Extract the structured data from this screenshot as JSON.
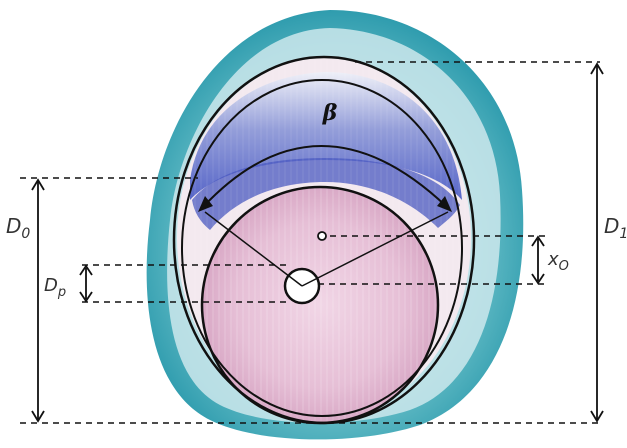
{
  "labels": {
    "beta": "β",
    "d0_main": "D",
    "d0_sub": "0",
    "d1_main": "D",
    "d1_sub": "1",
    "dp_main": "D",
    "dp_sub": "p",
    "xo_main": "x",
    "xo_sub": "O"
  },
  "colors": {
    "bark_blue": "#3fa9b8",
    "wood_pink": "#e8c3d9",
    "stained_blue": "#5564c8",
    "line": "#111111",
    "background": "#ffffff"
  }
}
